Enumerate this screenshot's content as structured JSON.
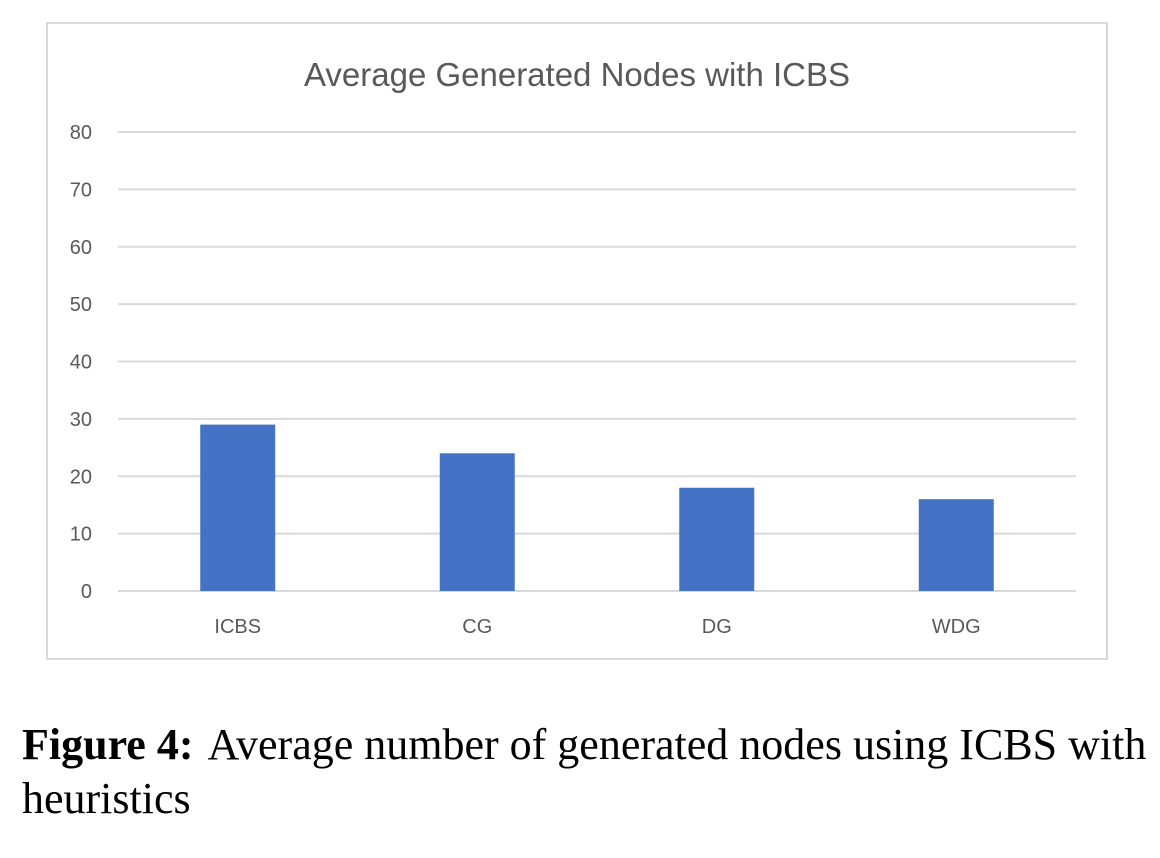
{
  "chart_data": {
    "type": "bar",
    "title": "Average Generated Nodes with ICBS",
    "categories": [
      "ICBS",
      "CG",
      "DG",
      "WDG"
    ],
    "values": [
      29,
      24,
      18,
      16
    ],
    "ylim": [
      0,
      80
    ],
    "yticks": [
      0,
      10,
      20,
      30,
      40,
      50,
      60,
      70,
      80
    ],
    "xlabel": "",
    "ylabel": "",
    "grid": true,
    "legend": "none",
    "bar_color": "#4472c4",
    "grid_color": "#d9d9d9",
    "text_color": "#595959"
  },
  "caption": {
    "label": "Figure 4:",
    "text": "Average number of generated nodes using ICBS with heuristics"
  }
}
